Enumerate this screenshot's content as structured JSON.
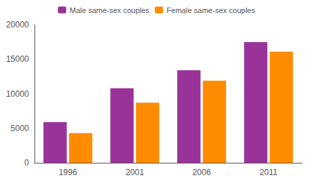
{
  "chart_data": {
    "type": "bar",
    "categories": [
      "1996",
      "2001",
      "2006",
      "2011"
    ],
    "series": [
      {
        "name": "Male same-sex couples",
        "color": "#993399",
        "values": [
          5900,
          10800,
          13400,
          17500
        ]
      },
      {
        "name": "Female same-sex couples",
        "color": "#FF8C00",
        "values": [
          4300,
          8700,
          11900,
          16100
        ]
      }
    ],
    "ylim": [
      0,
      20000
    ],
    "yticks": [
      0,
      5000,
      10000,
      15000,
      20000
    ],
    "grid": false,
    "legend": "top"
  }
}
